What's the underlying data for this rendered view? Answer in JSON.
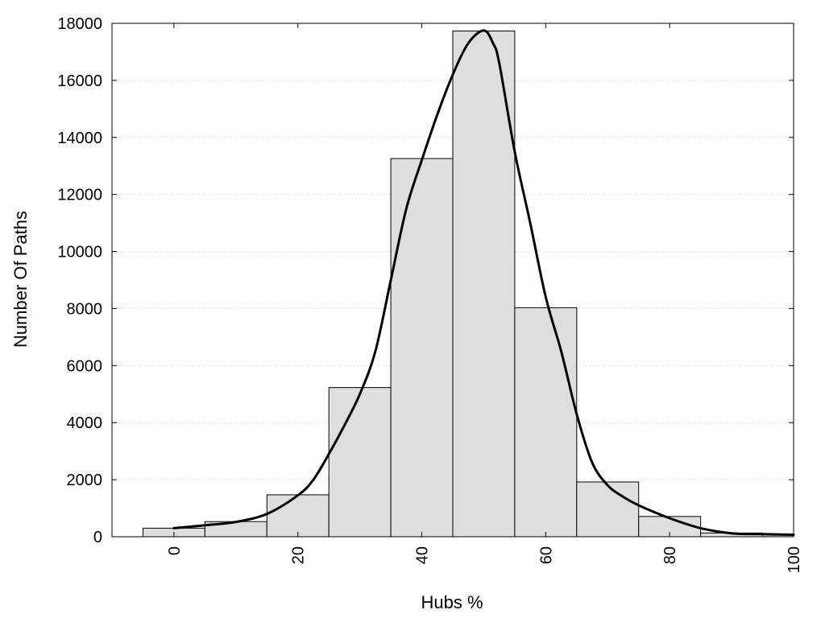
{
  "chart_data": {
    "type": "bar",
    "title": "",
    "xlabel": "Hubs %",
    "ylabel": "Number Of Paths",
    "xlim": [
      -10,
      100
    ],
    "ylim": [
      0,
      18000
    ],
    "xticks": [
      0,
      20,
      40,
      60,
      80,
      100
    ],
    "yticks": [
      0,
      2000,
      4000,
      6000,
      8000,
      10000,
      12000,
      14000,
      16000,
      18000
    ],
    "grid": "horizontal dotted",
    "legend": "none",
    "bin_width": 10,
    "bins": [
      {
        "center": 0,
        "value": 300
      },
      {
        "center": 10,
        "value": 530
      },
      {
        "center": 20,
        "value": 1470
      },
      {
        "center": 30,
        "value": 5230
      },
      {
        "center": 40,
        "value": 13260
      },
      {
        "center": 50,
        "value": 17730
      },
      {
        "center": 60,
        "value": 8030
      },
      {
        "center": 70,
        "value": 1920
      },
      {
        "center": 80,
        "value": 710
      },
      {
        "center": 90,
        "value": 130
      },
      {
        "center": 100,
        "value": 80
      }
    ],
    "curve": [
      [
        0,
        300
      ],
      [
        5,
        400
      ],
      [
        10,
        520
      ],
      [
        15,
        800
      ],
      [
        20,
        1450
      ],
      [
        22.5,
        2000
      ],
      [
        25,
        2900
      ],
      [
        27.5,
        3900
      ],
      [
        30,
        5000
      ],
      [
        32.5,
        6500
      ],
      [
        35,
        9000
      ],
      [
        37.5,
        11500
      ],
      [
        40,
        13200
      ],
      [
        42.5,
        14800
      ],
      [
        45,
        16200
      ],
      [
        47.5,
        17300
      ],
      [
        50,
        17750
      ],
      [
        51.5,
        17300
      ],
      [
        52.5,
        16600
      ],
      [
        55,
        13500
      ],
      [
        57.5,
        11000
      ],
      [
        60,
        8400
      ],
      [
        62.5,
        6500
      ],
      [
        65,
        4300
      ],
      [
        67.5,
        2600
      ],
      [
        70,
        1800
      ],
      [
        72.5,
        1400
      ],
      [
        75,
        1100
      ],
      [
        80,
        650
      ],
      [
        85,
        300
      ],
      [
        90,
        120
      ],
      [
        95,
        90
      ],
      [
        100,
        70
      ]
    ],
    "colors": {
      "bar_fill": "#dedede",
      "bar_stroke": "#000000",
      "curve": "#000000",
      "grid": "#c8c8c8"
    }
  }
}
